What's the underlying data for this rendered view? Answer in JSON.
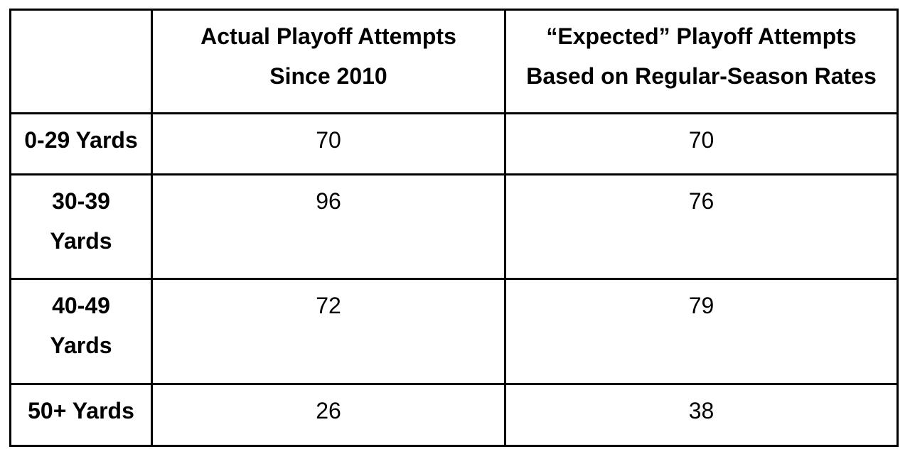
{
  "page": {
    "background_color": "#ffffff",
    "text_color": "#000000",
    "border_color": "#000000"
  },
  "table": {
    "header": {
      "corner": "",
      "col_actual": "Actual Playoff Attempts\nSince 2010",
      "col_expected": "“Expected” Playoff Attempts\nBased on Regular-Season Rates"
    },
    "rows": [
      {
        "label": "0-29 Yards",
        "actual": "70",
        "expected": "70"
      },
      {
        "label": "30-39\nYards",
        "actual": "96",
        "expected": "76"
      },
      {
        "label": "40-49\nYards",
        "actual": "72",
        "expected": "79"
      },
      {
        "label": "50+ Yards",
        "actual": "26",
        "expected": "38"
      }
    ]
  },
  "chart_data": {
    "type": "table",
    "categories": [
      "0-29 Yards",
      "30-39 Yards",
      "40-49 Yards",
      "50+ Yards"
    ],
    "series": [
      {
        "name": "Actual Playoff Attempts Since 2010",
        "values": [
          70,
          96,
          72,
          26
        ]
      },
      {
        "name": "“Expected” Playoff Attempts Based on Regular-Season Rates",
        "values": [
          70,
          76,
          79,
          38
        ]
      }
    ],
    "title": "",
    "xlabel": "",
    "ylabel": ""
  }
}
